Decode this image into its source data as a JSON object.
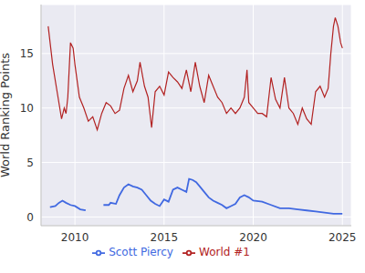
{
  "chart_data": {
    "type": "line",
    "y_label": "World Ranking Points",
    "xlim": [
      2008.1,
      2025.5
    ],
    "xticks": [
      2010,
      2015,
      2020,
      2025
    ],
    "ylim": [
      -0.8,
      19.5
    ],
    "yticks": [
      0,
      5,
      10,
      15
    ],
    "grid": true,
    "legend": "bottom",
    "series": [
      {
        "name": "Scott Piercy",
        "color": "#4169e1",
        "x": [
          2008.6,
          2008.9,
          2009.1,
          2009.3,
          2009.5,
          2009.75,
          2010.0,
          2010.3,
          2010.6,
          2011.0,
          2011.6,
          2011.9,
          2012.0,
          2012.3,
          2012.5,
          2012.75,
          2013.0,
          2013.25,
          2013.5,
          2013.75,
          2014.0,
          2014.25,
          2014.5,
          2014.75,
          2015.0,
          2015.25,
          2015.5,
          2015.75,
          2016.0,
          2016.25,
          2016.4,
          2016.6,
          2016.8,
          2017.0,
          2017.25,
          2017.5,
          2017.75,
          2018.0,
          2018.25,
          2018.5,
          2018.75,
          2019.0,
          2019.25,
          2019.5,
          2019.75,
          2020.0,
          2020.5,
          2021.0,
          2021.5,
          2022.0,
          2022.5,
          2023.0,
          2023.5,
          2024.0,
          2024.5,
          2025.0
        ],
        "values": [
          0.9,
          1.0,
          1.3,
          1.5,
          1.3,
          1.1,
          1.0,
          0.7,
          0.6,
          null,
          1.1,
          1.1,
          1.3,
          1.2,
          2.0,
          2.7,
          3.0,
          2.8,
          2.7,
          2.5,
          2.0,
          1.5,
          1.2,
          1.0,
          1.6,
          1.4,
          2.5,
          2.7,
          2.5,
          2.3,
          3.5,
          3.4,
          3.2,
          2.8,
          2.3,
          1.8,
          1.5,
          1.3,
          1.1,
          0.8,
          1.0,
          1.2,
          1.8,
          2.0,
          1.8,
          1.5,
          1.4,
          1.1,
          0.8,
          0.8,
          0.7,
          0.6,
          0.5,
          0.4,
          0.3,
          0.3
        ]
      },
      {
        "name": "World #1",
        "color": "#b22222",
        "x": [
          2008.5,
          2008.75,
          2009.0,
          2009.25,
          2009.4,
          2009.5,
          2009.6,
          2009.75,
          2009.9,
          2010.0,
          2010.25,
          2010.5,
          2010.75,
          2011.0,
          2011.25,
          2011.5,
          2011.75,
          2012.0,
          2012.25,
          2012.5,
          2012.75,
          2013.0,
          2013.25,
          2013.5,
          2013.65,
          2013.9,
          2014.1,
          2014.3,
          2014.5,
          2014.75,
          2015.0,
          2015.25,
          2015.5,
          2015.75,
          2016.0,
          2016.25,
          2016.5,
          2016.75,
          2017.0,
          2017.25,
          2017.5,
          2017.75,
          2018.0,
          2018.25,
          2018.5,
          2018.75,
          2019.0,
          2019.25,
          2019.5,
          2019.65,
          2019.75,
          2020.0,
          2020.25,
          2020.5,
          2020.75,
          2021.0,
          2021.25,
          2021.5,
          2021.75,
          2022.0,
          2022.25,
          2022.5,
          2022.75,
          2023.0,
          2023.25,
          2023.5,
          2023.75,
          2024.0,
          2024.2,
          2024.35,
          2024.5,
          2024.6,
          2024.75,
          2024.9,
          2025.0
        ],
        "values": [
          17.5,
          14,
          11.5,
          9,
          10,
          9.5,
          11,
          16,
          15.5,
          14,
          11,
          10,
          8.8,
          9.2,
          8.0,
          9.5,
          10.5,
          10.2,
          9.5,
          9.8,
          11.8,
          13,
          11.5,
          12.5,
          14.2,
          12,
          11,
          8.2,
          11.5,
          12,
          11.2,
          13.3,
          12.8,
          12.4,
          11.8,
          13.5,
          11.5,
          14.2,
          12,
          10.5,
          13,
          12,
          11,
          10.5,
          9.5,
          10,
          9.5,
          10,
          11,
          13.5,
          10.5,
          10,
          9.5,
          9.5,
          9.2,
          12.8,
          10.8,
          10,
          12.8,
          10,
          9.5,
          8.5,
          10,
          9,
          8.5,
          11.5,
          12,
          11,
          11.8,
          15,
          17.5,
          18.3,
          17.5,
          16,
          15.5
        ]
      }
    ]
  }
}
